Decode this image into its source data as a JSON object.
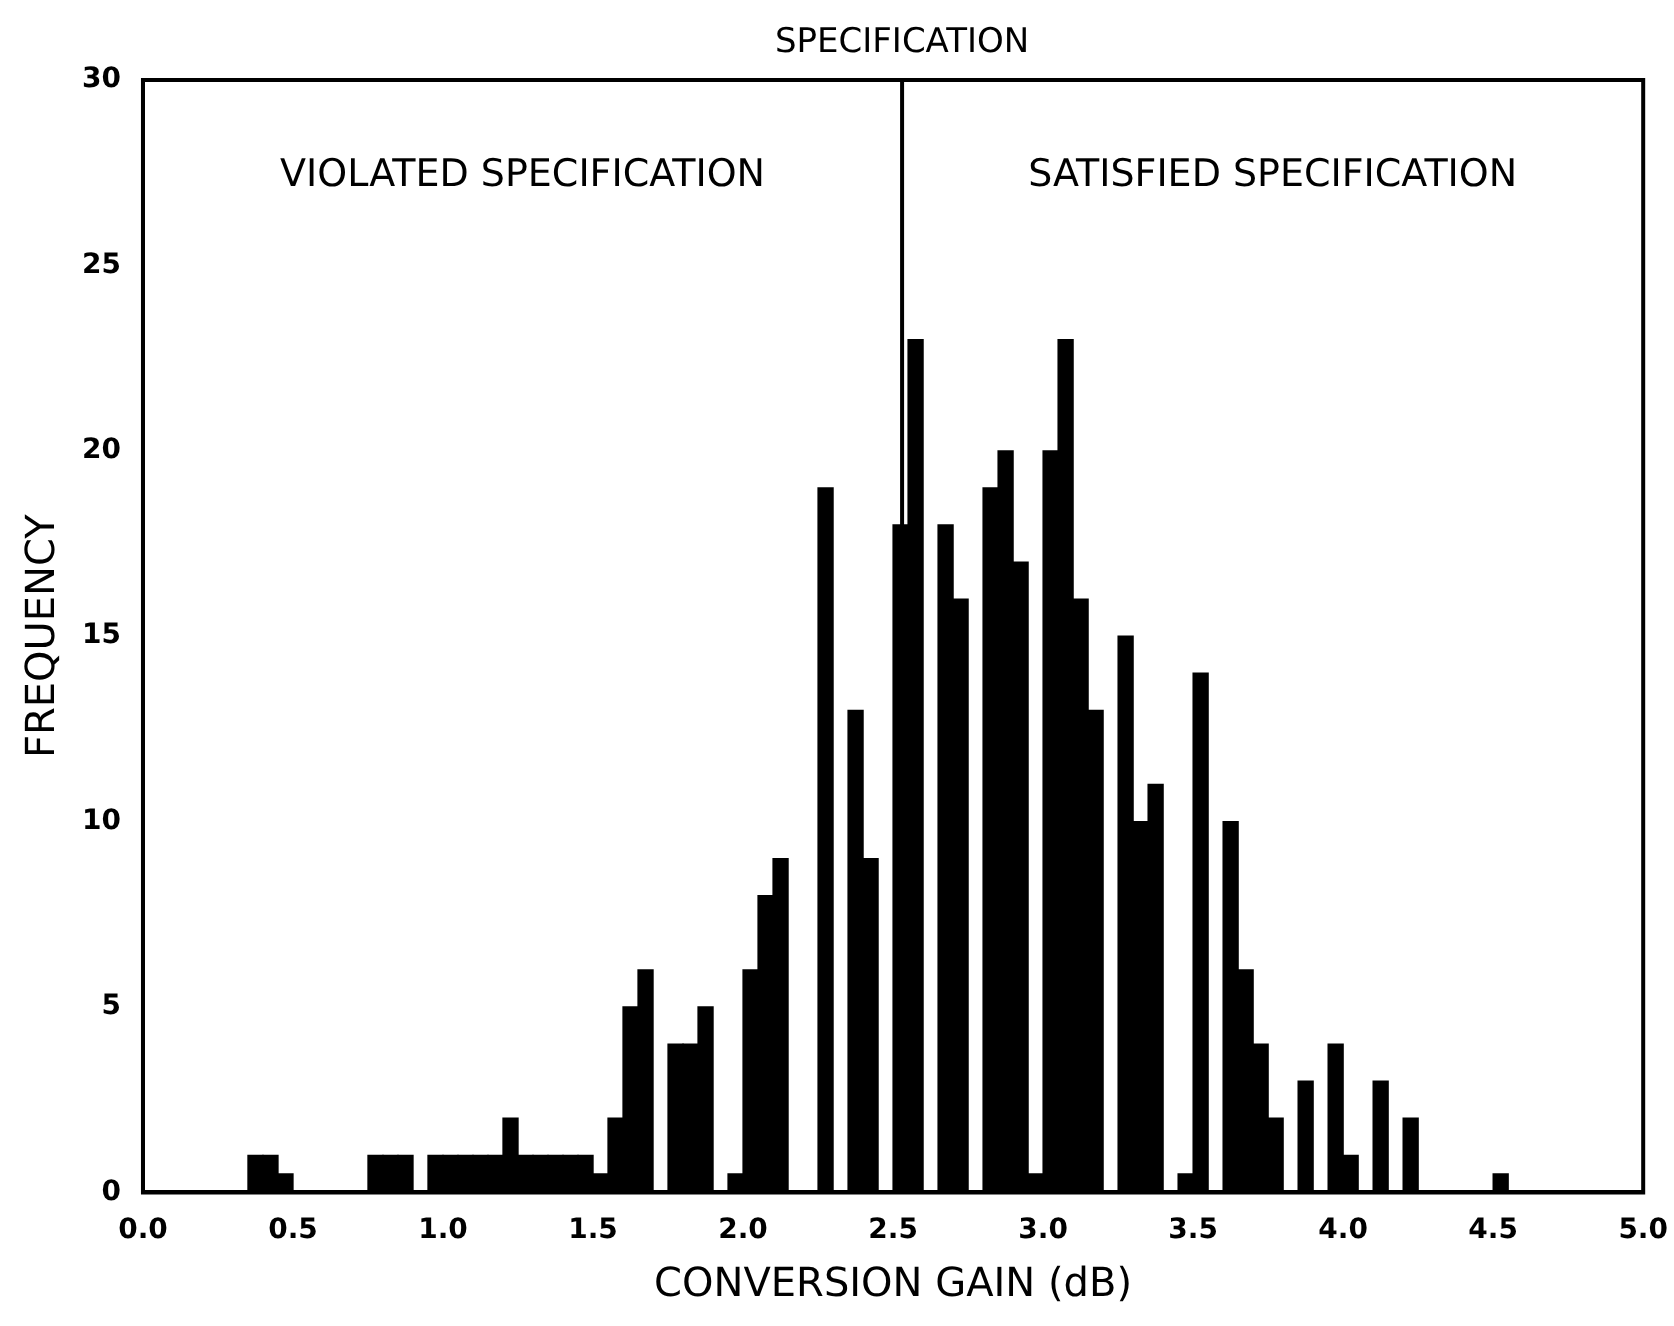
{
  "chart_data": {
    "type": "histogram",
    "xlabel": "CONVERSION GAIN (dB)",
    "ylabel": "FREQUENCY",
    "bins": [
      0.35,
      0.4,
      0.45,
      0.5,
      0.55,
      0.6,
      0.65,
      0.7,
      0.75,
      0.8,
      0.85,
      0.9,
      0.95,
      1.0,
      1.05,
      1.1,
      1.15,
      1.2,
      1.25,
      1.3,
      1.35,
      1.4,
      1.45,
      1.5,
      1.55,
      1.6,
      1.65,
      1.7,
      1.75,
      1.8,
      1.85,
      1.9,
      1.95,
      2.0,
      2.05,
      2.1,
      2.15,
      2.2,
      2.25,
      2.3,
      2.35,
      2.4,
      2.45,
      2.5,
      2.55,
      2.6,
      2.65,
      2.7,
      2.75,
      2.8,
      2.85,
      2.9,
      2.95,
      3.0,
      3.05,
      3.1,
      3.15,
      3.2,
      3.25,
      3.3,
      3.35,
      3.4,
      3.45,
      3.5,
      3.55,
      3.6,
      3.65,
      3.7,
      3.75,
      3.8,
      3.85,
      3.9,
      3.95,
      4.0,
      4.05,
      4.1,
      4.15,
      4.2,
      4.25,
      4.3,
      4.35,
      4.4,
      4.45,
      4.5,
      4.55
    ],
    "values": [
      1,
      1,
      0.5,
      0,
      0,
      0,
      0,
      0,
      1,
      1,
      1,
      0,
      1,
      1,
      1,
      1,
      1,
      2,
      1,
      1,
      1,
      1,
      1,
      0.5,
      2,
      5,
      6,
      0,
      4,
      4,
      5,
      0,
      0.5,
      6,
      8,
      9,
      0,
      0,
      19,
      0,
      13,
      9,
      0,
      18,
      23,
      0,
      18,
      16,
      0,
      19,
      20,
      17,
      0.5,
      20,
      23,
      16,
      13,
      0,
      15,
      10,
      11,
      0,
      0.5,
      14,
      0,
      10,
      6,
      4,
      2,
      0,
      3,
      0,
      4,
      1,
      0,
      3,
      0,
      2,
      0,
      0,
      0,
      0,
      0,
      0.5
    ],
    "color": "#000000",
    "xlim": [
      0,
      5
    ],
    "xticks": [
      {
        "value": 0,
        "label": "0.0"
      },
      {
        "value": 0.5,
        "label": "0.5"
      },
      {
        "value": 1,
        "label": "1.0"
      },
      {
        "value": 1.5,
        "label": "1.5"
      },
      {
        "value": 2,
        "label": "2.0"
      },
      {
        "value": 2.5,
        "label": "2.5"
      },
      {
        "value": 3,
        "label": "3.0"
      },
      {
        "value": 3.5,
        "label": "3.5"
      },
      {
        "value": 4,
        "label": "4.0"
      },
      {
        "value": 4.5,
        "label": "4.5"
      },
      {
        "value": 5,
        "label": "5.0"
      }
    ],
    "ylim": [
      0,
      30
    ],
    "yticks": [
      0,
      5,
      10,
      15,
      20,
      25,
      30
    ],
    "ref_lines": [
      {
        "axis": "x",
        "value": 2.53,
        "label": "SPECIFICATION",
        "color": "#000000"
      }
    ],
    "annotations": [
      "VIOLATED SPECIFICATION",
      "SATISFIED SPECIFICATION"
    ],
    "grid": false,
    "legend": false
  }
}
